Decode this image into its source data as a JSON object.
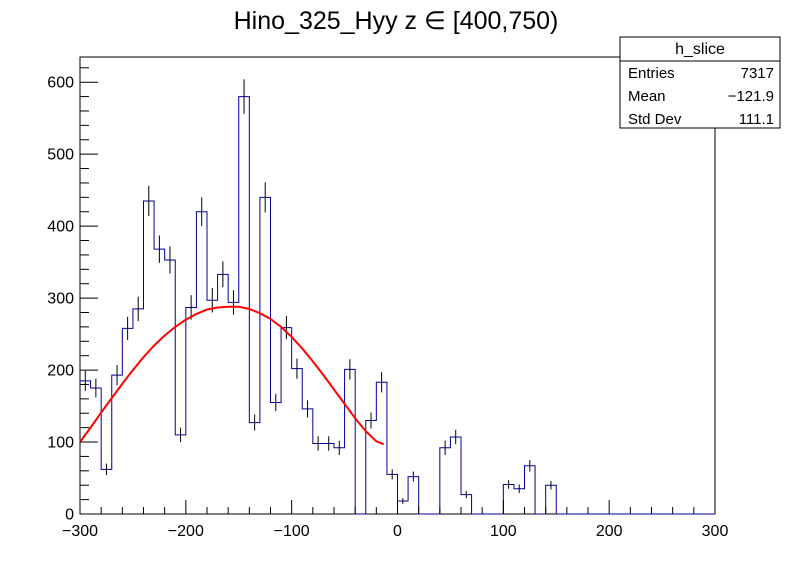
{
  "chart_data": {
    "type": "bar",
    "title": "Hino_325_Hyy z  ∈ [400,750)",
    "xlabel": "",
    "ylabel": "",
    "xlim": [
      -300,
      300
    ],
    "ylim": [
      0,
      635
    ],
    "x_ticks": [
      -300,
      -200,
      -100,
      0,
      100,
      200,
      300
    ],
    "x_tick_labels": [
      "−300",
      "−200",
      "−100",
      "0",
      "100",
      "200",
      "300"
    ],
    "y_ticks": [
      0,
      100,
      200,
      300,
      400,
      500,
      600
    ],
    "y_tick_labels": [
      "0",
      "100",
      "200",
      "300",
      "400",
      "500",
      "600"
    ],
    "bin_edges_start": -300,
    "bin_width": 10,
    "histogram": {
      "name": "h_slice",
      "color": "#000099",
      "values": [
        185,
        175,
        62,
        193,
        258,
        285,
        435,
        368,
        353,
        110,
        287,
        420,
        297,
        333,
        294,
        580,
        127,
        440,
        155,
        259,
        202,
        146,
        98,
        98,
        92,
        201,
        0,
        130,
        183,
        55,
        18,
        52,
        0,
        0,
        92,
        107,
        27,
        0,
        0,
        0,
        41,
        35,
        67,
        0,
        40,
        0,
        0,
        0,
        0,
        0,
        0,
        0,
        0,
        0,
        0,
        0,
        0,
        0,
        0,
        0
      ],
      "errors": [
        14,
        13,
        8,
        14,
        16,
        17,
        21,
        19,
        19,
        10,
        17,
        20,
        17,
        18,
        17,
        24,
        11,
        21,
        12,
        16,
        14,
        12,
        10,
        10,
        10,
        14,
        0,
        11,
        14,
        7,
        4,
        7,
        0,
        0,
        10,
        10,
        5,
        0,
        0,
        0,
        6,
        6,
        8,
        0,
        6,
        0,
        0,
        0,
        0,
        0,
        0,
        0,
        0,
        0,
        0,
        0,
        0,
        0,
        0,
        0
      ]
    },
    "fit": {
      "color": "#ff0000",
      "x": [
        -300,
        -290,
        -280,
        -270,
        -260,
        -250,
        -240,
        -230,
        -220,
        -210,
        -200,
        -190,
        -180,
        -170,
        -160,
        -150,
        -140,
        -130,
        -120,
        -110,
        -100,
        -90,
        -80,
        -70,
        -60,
        -50,
        -40,
        -30,
        -20,
        -13
      ],
      "y": [
        100,
        120,
        141,
        161,
        181,
        200,
        218,
        234,
        248,
        260,
        270,
        278,
        284,
        287,
        288,
        288,
        285,
        279,
        271,
        260,
        246,
        230,
        212,
        193,
        173,
        153,
        133,
        115,
        101,
        97
      ]
    },
    "grid": false,
    "legend": "none",
    "stats_box": {
      "title": "h_slice",
      "rows": [
        {
          "label": "Entries",
          "value": "7317"
        },
        {
          "label": "Mean",
          "value": "−121.9"
        },
        {
          "label": "Std Dev",
          "value": "111.1"
        }
      ]
    }
  }
}
